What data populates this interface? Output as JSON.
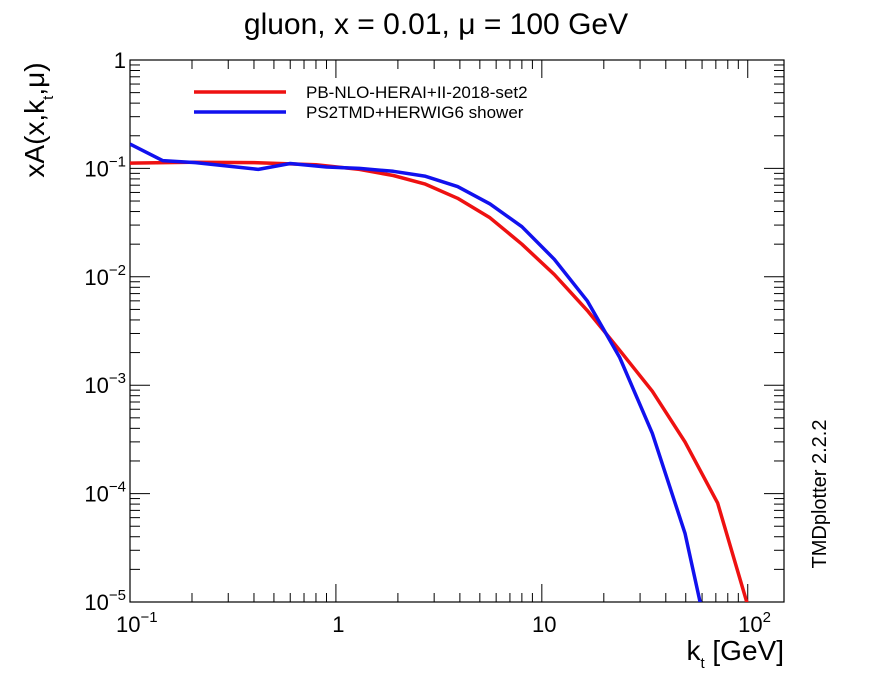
{
  "chart_data": {
    "type": "line",
    "title": "gluon, x = 0.01, μ = 100 GeV",
    "xlabel": {
      "main": "k",
      "sub": "t",
      "rest": " [GeV]"
    },
    "ylabel": {
      "pre": "xA(x,k",
      "sub": "t",
      "post": ",μ)"
    },
    "xscale": "log",
    "yscale": "log",
    "xlim": [
      0.1,
      150
    ],
    "ylim": [
      1e-05,
      1
    ],
    "x_tick_labels": [
      {
        "value": 0.1,
        "base": "10",
        "exp": "−1"
      },
      {
        "value": 1,
        "base": "1",
        "exp": ""
      },
      {
        "value": 10,
        "base": "10",
        "exp": ""
      },
      {
        "value": 100,
        "base": "10",
        "exp": "2"
      }
    ],
    "y_tick_labels": [
      {
        "value": 1,
        "base": "1",
        "exp": ""
      },
      {
        "value": 0.1,
        "base": "10",
        "exp": "−1"
      },
      {
        "value": 0.01,
        "base": "10",
        "exp": "−2"
      },
      {
        "value": 0.001,
        "base": "10",
        "exp": "−3"
      },
      {
        "value": 0.0001,
        "base": "10",
        "exp": "−4"
      },
      {
        "value": 1e-05,
        "base": "10",
        "exp": "−5"
      }
    ],
    "legend_position": "top-left",
    "side_label": "TMDplotter 2.2.2",
    "series": [
      {
        "name": "PB-NLO-HERAI+II-2018-set2",
        "color": "#ee1111",
        "x": [
          0.1,
          0.2,
          0.4,
          0.8,
          1.3,
          1.9,
          2.7,
          3.9,
          5.6,
          8.0,
          11.5,
          16.6,
          23.9,
          34.4,
          49.6,
          71.4,
          102.8
        ],
        "y": [
          0.112,
          0.114,
          0.113,
          0.108,
          0.098,
          0.086,
          0.072,
          0.053,
          0.035,
          0.02,
          0.0105,
          0.0049,
          0.0021,
          0.00088,
          0.0003,
          8.2e-05,
          7.8e-06
        ]
      },
      {
        "name": "PS2TMD+HERWIG6 shower",
        "color": "#1111ee",
        "x": [
          0.1,
          0.144,
          0.208,
          0.42,
          0.6,
          0.9,
          1.3,
          1.9,
          2.7,
          3.9,
          5.6,
          8.0,
          11.5,
          16.6,
          23.9,
          34.4,
          49.6,
          59.0
        ],
        "y": [
          0.168,
          0.118,
          0.113,
          0.098,
          0.111,
          0.103,
          0.1,
          0.094,
          0.085,
          0.068,
          0.047,
          0.029,
          0.0145,
          0.006,
          0.0018,
          0.00036,
          4.3e-05,
          9.5e-06
        ]
      }
    ]
  }
}
